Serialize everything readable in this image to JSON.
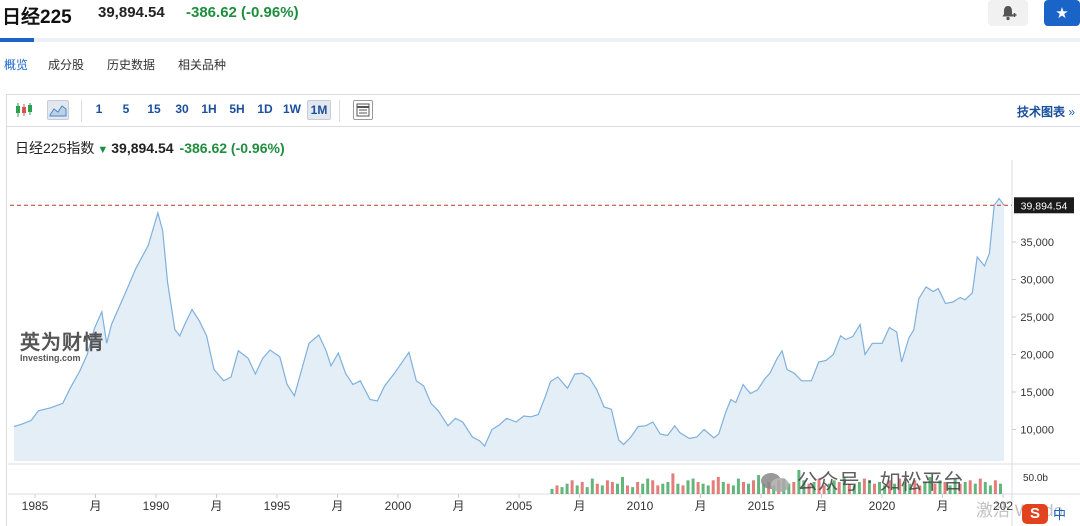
{
  "header": {
    "title": "日经225",
    "price": "39,894.54",
    "change": "-386.62 (-0.96%)"
  },
  "tabs": [
    {
      "label": "概览",
      "active": true
    },
    {
      "label": "成分股",
      "active": false
    },
    {
      "label": "历史数据",
      "active": false
    },
    {
      "label": "相关品种",
      "active": false
    }
  ],
  "toolbar": {
    "intervals": [
      "1",
      "5",
      "15",
      "30",
      "1H",
      "5H",
      "1D",
      "1W",
      "1M"
    ],
    "selected_interval": "1M",
    "tech_chart_label": "技术图表",
    "tech_chart_arrow": "»"
  },
  "legend": {
    "name": "日经225指数",
    "arrow": "▼",
    "price": "39,894.54",
    "change": "-386.62 (-0.96%)"
  },
  "watermark": {
    "main": "英为财情",
    "sub": "Investing.com"
  },
  "overlay": {
    "text": "公众号 · 如松平台",
    "activate": "激活 Windo",
    "s_badge": "S",
    "zh_badge": "中"
  },
  "colors": {
    "up": "#1e8e3e",
    "down": "#1e8e3e",
    "accent": "#1a63c7",
    "line": "#7fb0dc",
    "area": "#e4eef7",
    "last_price_line": "#c0392b",
    "volume_up": "#2e9e4f",
    "volume_down": "#d9534f"
  },
  "chart_data": {
    "type": "area",
    "title": "日经225指数",
    "last_price": 39894.54,
    "last_price_label": "39,894.54",
    "x_ticks": [
      "1985",
      "月",
      "1990",
      "月",
      "1995",
      "月",
      "2000",
      "月",
      "2005",
      "月",
      "2010",
      "月",
      "2015",
      "月",
      "2020",
      "月",
      "202"
    ],
    "y_ticks": [
      {
        "value": 35000,
        "label": "35,000"
      },
      {
        "value": 30000,
        "label": "30,000"
      },
      {
        "value": 25000,
        "label": "25,000"
      },
      {
        "value": 20000,
        "label": "20,000"
      },
      {
        "value": 15000,
        "label": "15,000"
      },
      {
        "value": 10000,
        "label": "10,000"
      }
    ],
    "volume_axis_label": "50.0b",
    "xlim": [
      1984.0,
      2024.6
    ],
    "ylim": [
      5800,
      43000
    ],
    "grid": false,
    "series": [
      {
        "x": [
          1984.0,
          1984.3,
          1984.7,
          1985.0,
          1985.5,
          1986.0,
          1986.3,
          1986.7,
          1987.0,
          1987.3,
          1987.6,
          1987.8,
          1988.0,
          1988.5,
          1989.0,
          1989.5,
          1989.9,
          1990.1,
          1990.3,
          1990.6,
          1990.8,
          1991.0,
          1991.3,
          1991.6,
          1991.9,
          1992.2,
          1992.6,
          1992.9,
          1993.2,
          1993.6,
          1993.9,
          1994.2,
          1994.5,
          1994.9,
          1995.2,
          1995.5,
          1995.8,
          1996.1,
          1996.5,
          1996.8,
          1997.0,
          1997.3,
          1997.6,
          1997.9,
          1998.2,
          1998.6,
          1998.9,
          1999.2,
          1999.6,
          1999.9,
          2000.2,
          2000.5,
          2000.8,
          2001.1,
          2001.4,
          2001.8,
          2002.1,
          2002.4,
          2002.8,
          2003.1,
          2003.3,
          2003.6,
          2003.9,
          2004.2,
          2004.6,
          2004.9,
          2005.2,
          2005.5,
          2005.8,
          2006.0,
          2006.3,
          2006.7,
          2007.0,
          2007.3,
          2007.6,
          2007.9,
          2008.2,
          2008.5,
          2008.8,
          2009.0,
          2009.3,
          2009.6,
          2009.9,
          2010.2,
          2010.5,
          2010.8,
          2011.1,
          2011.3,
          2011.7,
          2012.0,
          2012.3,
          2012.7,
          2012.9,
          2013.2,
          2013.4,
          2013.6,
          2013.9,
          2014.2,
          2014.5,
          2014.8,
          2015.0,
          2015.3,
          2015.5,
          2015.7,
          2016.0,
          2016.3,
          2016.7,
          2017.0,
          2017.3,
          2017.6,
          2017.9,
          2018.1,
          2018.4,
          2018.7,
          2018.9,
          2019.2,
          2019.6,
          2019.9,
          2020.2,
          2020.4,
          2020.7,
          2020.9,
          2021.1,
          2021.4,
          2021.7,
          2021.9,
          2022.2,
          2022.5,
          2022.8,
          2023.0,
          2023.3,
          2023.5,
          2023.8,
          2024.0,
          2024.2,
          2024.4,
          2024.6
        ],
        "y": [
          10400,
          10700,
          11200,
          12500,
          12900,
          13500,
          15500,
          17800,
          20000,
          23500,
          25700,
          21500,
          24000,
          27700,
          31500,
          34500,
          38900,
          36500,
          29600,
          23300,
          22500,
          24000,
          26000,
          24500,
          22500,
          18000,
          16500,
          17000,
          20500,
          19500,
          17400,
          19500,
          20600,
          19700,
          16000,
          14500,
          18000,
          21500,
          22600,
          20500,
          18500,
          20200,
          17500,
          16000,
          16500,
          14000,
          13800,
          15800,
          17500,
          18900,
          20300,
          16500,
          15800,
          13500,
          12500,
          10500,
          11500,
          11000,
          9000,
          8500,
          7800,
          10000,
          10600,
          11500,
          11000,
          11800,
          11700,
          12000,
          14500,
          16400,
          17000,
          15500,
          17400,
          17500,
          16900,
          15300,
          13000,
          12700,
          8600,
          8000,
          9000,
          10400,
          10500,
          11000,
          9400,
          9200,
          10500,
          9600,
          8800,
          9000,
          10000,
          8900,
          9400,
          12400,
          14000,
          13600,
          16000,
          14800,
          15300,
          16800,
          17500,
          19500,
          20500,
          18000,
          17500,
          16500,
          16500,
          19000,
          19200,
          20000,
          22500,
          22000,
          22400,
          24000,
          20000,
          21500,
          21500,
          23600,
          23000,
          19000,
          22200,
          23300,
          27400,
          29000,
          28400,
          28800,
          26800,
          27000,
          27600,
          27300,
          28200,
          33000,
          31800,
          33500,
          39900,
          40800,
          39894.54
        ]
      }
    ],
    "volume": {
      "start_year": 2006.0,
      "end_year": 2024.6,
      "bars": [
        3,
        5,
        4,
        6,
        8,
        5,
        7,
        4,
        9,
        6,
        5,
        8,
        7,
        6,
        10,
        5,
        4,
        7,
        6,
        9,
        8,
        5,
        6,
        7,
        12,
        6,
        5,
        8,
        9,
        7,
        6,
        5,
        8,
        10,
        7,
        6,
        5,
        9,
        7,
        6,
        8,
        11,
        6,
        7,
        5,
        8,
        9,
        6,
        7,
        14,
        8,
        6,
        7,
        9,
        5,
        6,
        8,
        7,
        10,
        6,
        5,
        7,
        9,
        8,
        6,
        7,
        5,
        8,
        6,
        9,
        7,
        6,
        8,
        5,
        7,
        10,
        6,
        8,
        7,
        5,
        9,
        6,
        7,
        8,
        6,
        9,
        7,
        5,
        8,
        6
      ],
      "directions": [
        1,
        0,
        1,
        1,
        0,
        1,
        0,
        1,
        1,
        0,
        1,
        0,
        0,
        1,
        1,
        0,
        1,
        0,
        1,
        1,
        0,
        0,
        1,
        1,
        0,
        1,
        0,
        1,
        1,
        0,
        1,
        1,
        0,
        0,
        1,
        0,
        1,
        1,
        0,
        1,
        0,
        1,
        1,
        0,
        1,
        0,
        1,
        1,
        0,
        1,
        1,
        0,
        1,
        0,
        0,
        1,
        1,
        0,
        1,
        0,
        1,
        1,
        0,
        1,
        0,
        1,
        1,
        0,
        1,
        0,
        1,
        1,
        0,
        0,
        1,
        1,
        0,
        1,
        0,
        1,
        1,
        0,
        1,
        0,
        1,
        0,
        1,
        1,
        0,
        1
      ]
    }
  }
}
